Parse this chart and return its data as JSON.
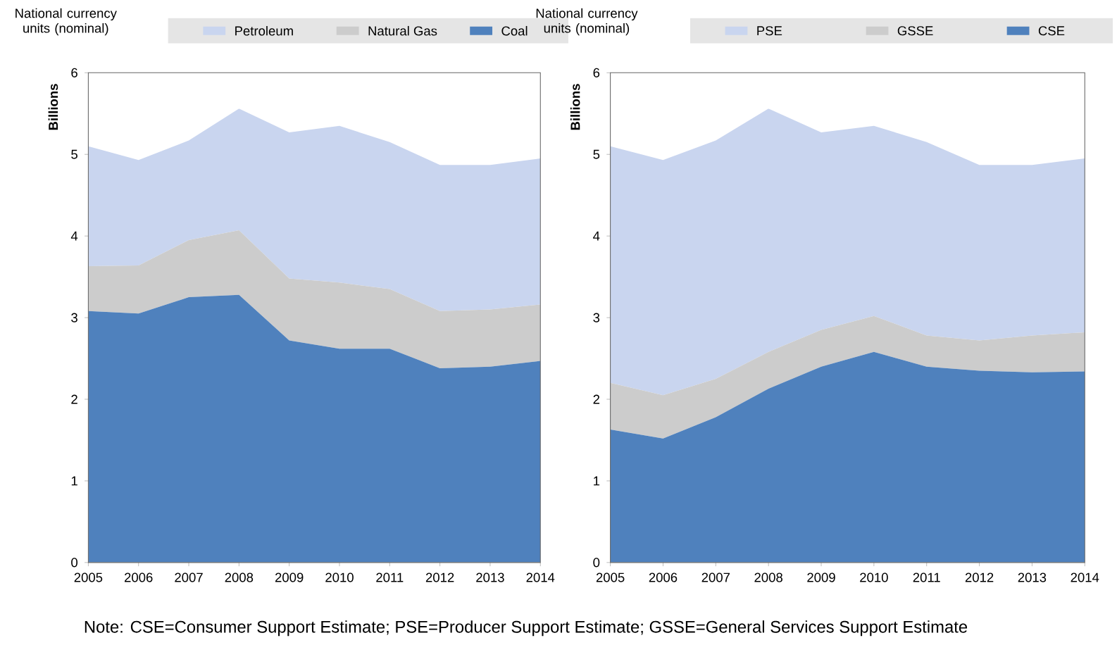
{
  "chart_data": [
    {
      "type": "area",
      "title": "National currency units (nominal)",
      "ylabel": "Billions",
      "stacked": true,
      "legend": "top",
      "x": [
        2005,
        2006,
        2007,
        2008,
        2009,
        2010,
        2011,
        2012,
        2013,
        2014
      ],
      "xlim": [
        2005,
        2014
      ],
      "xticks": [
        2005,
        2006,
        2007,
        2008,
        2009,
        2010,
        2011,
        2012,
        2013,
        2014
      ],
      "ylim": [
        0,
        6
      ],
      "yticks": [
        0,
        1,
        2,
        3,
        4,
        5,
        6
      ],
      "series": [
        {
          "name": "Coal",
          "color": "#4f81bd",
          "values": [
            3.08,
            3.05,
            3.25,
            3.28,
            2.72,
            2.62,
            2.62,
            2.38,
            2.4,
            2.47
          ]
        },
        {
          "name": "Natural Gas",
          "color": "#cccccc",
          "values": [
            0.55,
            0.59,
            0.7,
            0.79,
            0.76,
            0.81,
            0.73,
            0.7,
            0.7,
            0.69
          ]
        },
        {
          "name": "Petroleum",
          "color": "#c9d5ef",
          "values": [
            1.47,
            1.29,
            1.22,
            1.49,
            1.79,
            1.92,
            1.8,
            1.79,
            1.77,
            1.79
          ]
        }
      ],
      "annotations": [
        "Note: CSE=Consumer Support Estimate; PSE=Producer Support Estimate; GSSE=General Services Support Estimate"
      ]
    },
    {
      "type": "area",
      "title": "National currency units (nominal)",
      "ylabel": "Billions",
      "stacked": true,
      "legend": "top",
      "x": [
        2005,
        2006,
        2007,
        2008,
        2009,
        2010,
        2011,
        2012,
        2013,
        2014
      ],
      "xlim": [
        2005,
        2014
      ],
      "xticks": [
        2005,
        2006,
        2007,
        2008,
        2009,
        2010,
        2011,
        2012,
        2013,
        2014
      ],
      "ylim": [
        0,
        6
      ],
      "yticks": [
        0,
        1,
        2,
        3,
        4,
        5,
        6
      ],
      "series": [
        {
          "name": "CSE",
          "color": "#4f81bd",
          "values": [
            1.63,
            1.52,
            1.78,
            2.13,
            2.4,
            2.58,
            2.4,
            2.35,
            2.33,
            2.34
          ]
        },
        {
          "name": "GSSE",
          "color": "#cccccc",
          "values": [
            0.57,
            0.53,
            0.47,
            0.45,
            0.45,
            0.44,
            0.38,
            0.37,
            0.45,
            0.48
          ]
        },
        {
          "name": "PSE",
          "color": "#c9d5ef",
          "values": [
            2.9,
            2.88,
            2.92,
            2.98,
            2.42,
            2.33,
            2.37,
            2.15,
            2.09,
            2.13
          ]
        }
      ]
    }
  ]
}
